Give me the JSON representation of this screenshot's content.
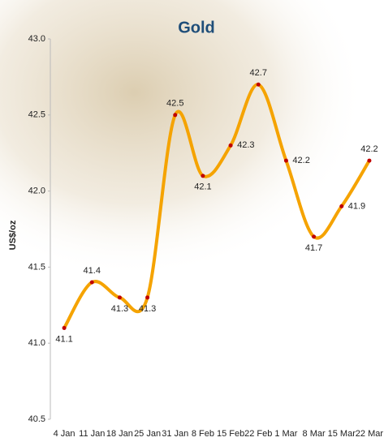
{
  "chart_data": {
    "type": "line",
    "title": "Gold",
    "y_label": "US$/oz",
    "categories": [
      "4 Jan",
      "11 Jan",
      "18 Jan",
      "25 Jan",
      "31 Jan",
      "8 Feb",
      "15 Feb",
      "22 Feb",
      "1 Mar",
      "8 Mar",
      "15 Mar",
      "22 Mar"
    ],
    "values": [
      41.1,
      41.4,
      41.3,
      41.3,
      42.5,
      42.1,
      42.3,
      42.7,
      42.2,
      41.7,
      41.9,
      42.2
    ],
    "color": "#f5a300",
    "marker_color": "#c00000",
    "ylim": [
      40.5,
      43.0
    ],
    "yticks": [
      40.5,
      {
        "value": 41.0,
        "label": "41.0"
      },
      41.5,
      {
        "value": 42.0,
        "label": "42.0"
      },
      42.5,
      {
        "value": 43.0,
        "label": "43.0"
      }
    ]
  }
}
